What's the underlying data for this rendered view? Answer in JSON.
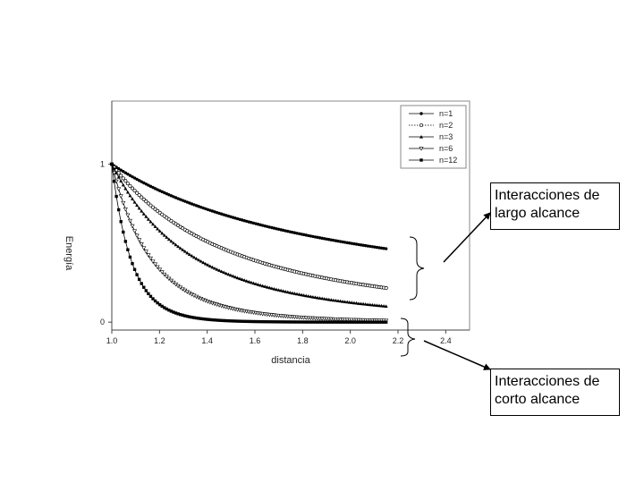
{
  "chart_data": {
    "type": "line",
    "title": "",
    "xlabel": "distancia",
    "ylabel": "Energía",
    "xlim": [
      1.0,
      2.5
    ],
    "ylim": [
      -0.05,
      1.4
    ],
    "x_ticks": [
      "1.0",
      "1.2",
      "1.4",
      "1.6",
      "1.8",
      "2.0",
      "2.2",
      "2.4"
    ],
    "y_ticks": [
      "0",
      "1"
    ],
    "legend_position": "top-right",
    "grid": false,
    "series": [
      {
        "name": "n=1",
        "marker": "filled-circle",
        "x_range": [
          1.0,
          2.15
        ],
        "values": [
          1.0,
          0.909,
          0.833,
          0.769,
          0.714,
          0.667,
          0.625,
          0.588,
          0.556,
          0.526,
          0.5,
          0.476,
          0.465
        ]
      },
      {
        "name": "n=2",
        "marker": "open-circle",
        "x_range": [
          1.0,
          2.15
        ],
        "values": [
          1.0,
          0.826,
          0.694,
          0.592,
          0.51,
          0.444,
          0.391,
          0.346,
          0.309,
          0.277,
          0.25,
          0.227,
          0.216
        ]
      },
      {
        "name": "n=3",
        "marker": "filled-triangle",
        "x_range": [
          1.0,
          2.15
        ],
        "values": [
          1.0,
          0.751,
          0.579,
          0.455,
          0.364,
          0.296,
          0.244,
          0.204,
          0.171,
          0.146,
          0.125,
          0.108,
          0.101
        ]
      },
      {
        "name": "n=6",
        "marker": "open-triangle",
        "x_range": [
          1.0,
          2.15
        ],
        "values": [
          1.0,
          0.564,
          0.335,
          0.207,
          0.133,
          0.088,
          0.06,
          0.042,
          0.029,
          0.021,
          0.016,
          0.012,
          0.01
        ]
      },
      {
        "name": "n=12",
        "marker": "filled-square",
        "x_range": [
          1.0,
          2.15
        ],
        "values": [
          1.0,
          0.319,
          0.112,
          0.043,
          0.018,
          0.008,
          0.004,
          0.002,
          0.001,
          0.0,
          0.0,
          0.0,
          0.0
        ]
      }
    ]
  },
  "annotations": {
    "long_range": {
      "line1": "Interacciones de",
      "line2": "largo alcance"
    },
    "short_range": {
      "line1": "Interacciones de",
      "line2": "corto alcance"
    }
  }
}
